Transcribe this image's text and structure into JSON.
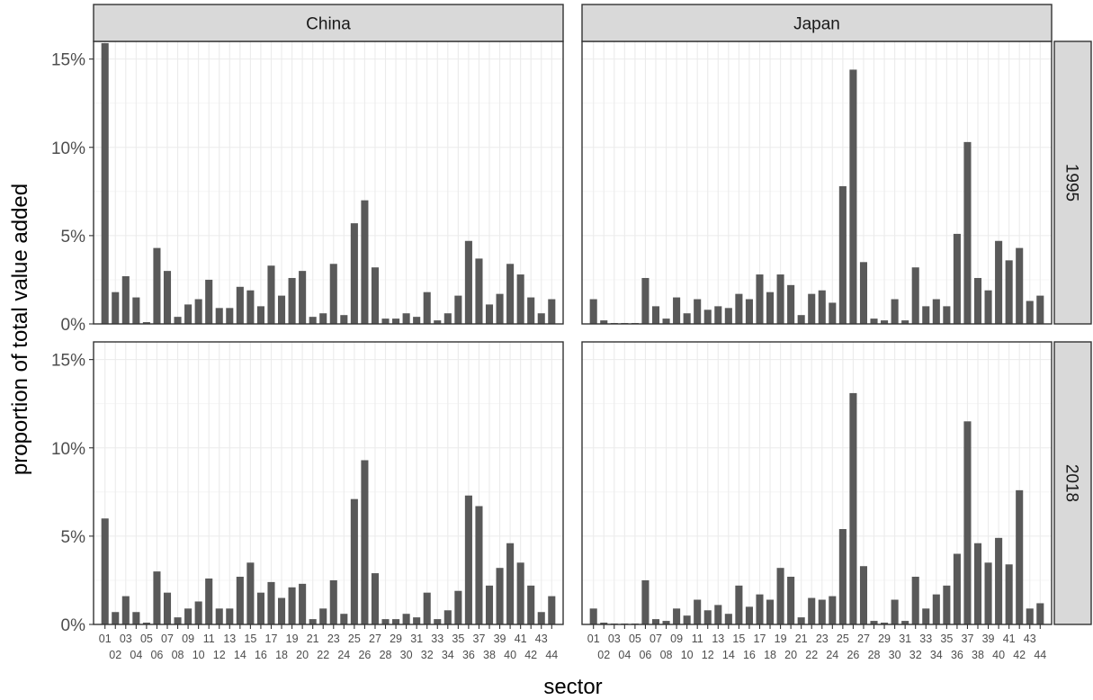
{
  "chart_data": {
    "type": "bar",
    "layout": "facet_grid",
    "xlabel": "sector",
    "ylabel": "proportion of total value added",
    "ylim": [
      0,
      0.16
    ],
    "y_ticks": [
      0,
      0.05,
      0.1,
      0.15
    ],
    "y_tick_labels": [
      "0%",
      "5%",
      "10%",
      "15%"
    ],
    "grid": true,
    "legend": "none",
    "bar_color": "#595959",
    "strip_color": "#d9d9d9",
    "categories": [
      "01",
      "02",
      "03",
      "04",
      "05",
      "06",
      "07",
      "08",
      "09",
      "10",
      "11",
      "12",
      "13",
      "14",
      "15",
      "16",
      "17",
      "18",
      "19",
      "20",
      "21",
      "22",
      "23",
      "24",
      "25",
      "26",
      "27",
      "28",
      "29",
      "30",
      "31",
      "32",
      "33",
      "34",
      "35",
      "36",
      "37",
      "38",
      "39",
      "40",
      "41",
      "42",
      "43",
      "44"
    ],
    "columns": [
      "China",
      "Japan"
    ],
    "rows": [
      "1995",
      "2018"
    ],
    "panels": [
      {
        "column": "China",
        "row": "1995",
        "values": [
          0.159,
          0.018,
          0.027,
          0.015,
          0.001,
          0.043,
          0.03,
          0.004,
          0.011,
          0.014,
          0.025,
          0.009,
          0.009,
          0.021,
          0.019,
          0.01,
          0.033,
          0.016,
          0.026,
          0.03,
          0.004,
          0.006,
          0.034,
          0.005,
          0.057,
          0.07,
          0.032,
          0.003,
          0.003,
          0.006,
          0.004,
          0.018,
          0.002,
          0.006,
          0.016,
          0.047,
          0.037,
          0.011,
          0.017,
          0.034,
          0.028,
          0.015,
          0.006,
          0.014
        ]
      },
      {
        "column": "Japan",
        "row": "1995",
        "values": [
          0.014,
          0.002,
          0.0005,
          0.0005,
          0.0005,
          0.026,
          0.01,
          0.003,
          0.015,
          0.006,
          0.014,
          0.008,
          0.01,
          0.009,
          0.017,
          0.014,
          0.028,
          0.018,
          0.028,
          0.022,
          0.005,
          0.017,
          0.019,
          0.012,
          0.078,
          0.144,
          0.035,
          0.003,
          0.002,
          0.014,
          0.002,
          0.032,
          0.01,
          0.014,
          0.01,
          0.051,
          0.103,
          0.026,
          0.019,
          0.047,
          0.036,
          0.043,
          0.013,
          0.016
        ]
      },
      {
        "column": "China",
        "row": "2018",
        "values": [
          0.06,
          0.007,
          0.016,
          0.007,
          0.001,
          0.03,
          0.018,
          0.004,
          0.009,
          0.013,
          0.026,
          0.009,
          0.009,
          0.027,
          0.035,
          0.018,
          0.024,
          0.015,
          0.021,
          0.023,
          0.003,
          0.009,
          0.025,
          0.006,
          0.071,
          0.093,
          0.029,
          0.003,
          0.003,
          0.006,
          0.004,
          0.018,
          0.003,
          0.008,
          0.019,
          0.073,
          0.067,
          0.022,
          0.032,
          0.046,
          0.035,
          0.022,
          0.007,
          0.016
        ]
      },
      {
        "column": "Japan",
        "row": "2018",
        "values": [
          0.009,
          0.001,
          0.0005,
          0.0005,
          0.0005,
          0.025,
          0.003,
          0.002,
          0.009,
          0.005,
          0.014,
          0.008,
          0.011,
          0.006,
          0.022,
          0.01,
          0.017,
          0.014,
          0.032,
          0.027,
          0.004,
          0.015,
          0.014,
          0.016,
          0.054,
          0.131,
          0.033,
          0.002,
          0.001,
          0.014,
          0.002,
          0.027,
          0.009,
          0.017,
          0.022,
          0.04,
          0.115,
          0.046,
          0.035,
          0.049,
          0.034,
          0.076,
          0.009,
          0.012
        ]
      }
    ]
  }
}
